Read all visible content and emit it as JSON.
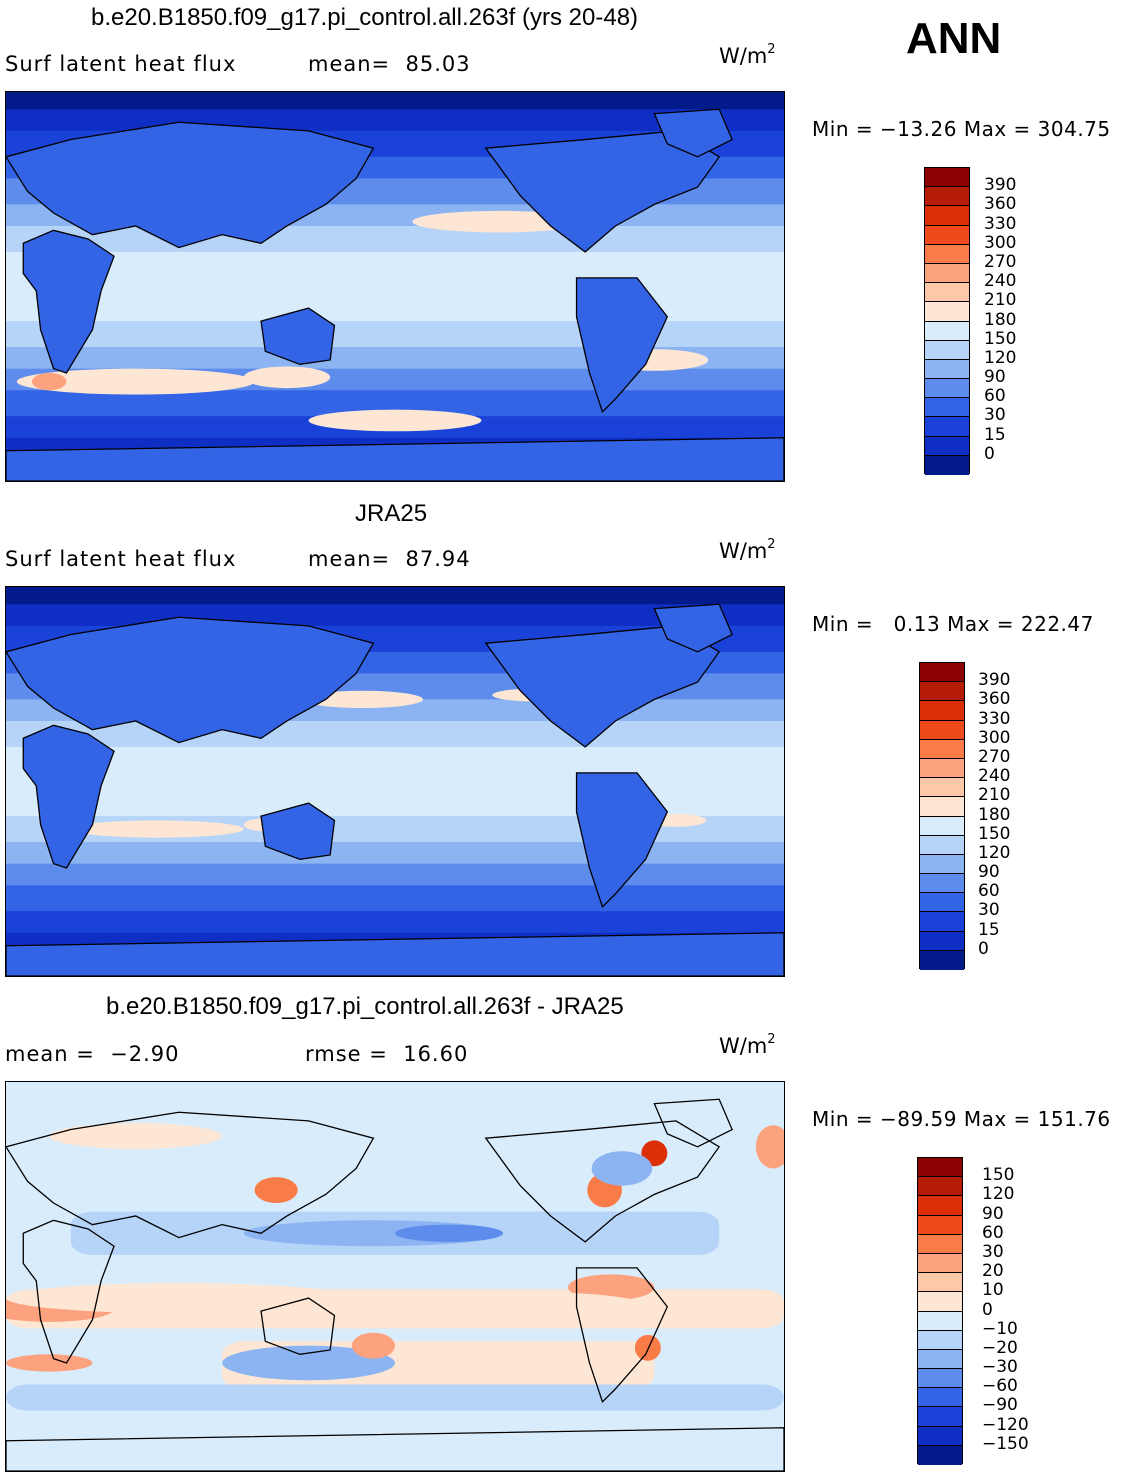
{
  "season": "ANN",
  "panels": [
    {
      "title": "b.e20.B1850.f09_g17.pi_control.all.263f (yrs 20-48)",
      "left_label": "Surf latent heat flux",
      "stat_label": "mean=  85.03",
      "units": "W/m",
      "units_sup": "2",
      "minmax": "Min = −13.26 Max = 304.75",
      "levels": [
        "390",
        "360",
        "330",
        "300",
        "270",
        "240",
        "210",
        "180",
        "150",
        "120",
        "90",
        "60",
        "30",
        "15",
        "0"
      ],
      "colors": [
        "#8b0000",
        "#b51c06",
        "#dc2f08",
        "#ef4a1c",
        "#f97b48",
        "#fca27e",
        "#fdc8a8",
        "#fde6d4",
        "#d9ecfb",
        "#b6d4f8",
        "#8cb4f2",
        "#5e8cec",
        "#3464e6",
        "#1a42d8",
        "#0f2fc4",
        "#021a8a"
      ],
      "field": "clim"
    },
    {
      "title": "JRA25",
      "left_label": "Surf latent heat flux",
      "stat_label": "mean=  87.94",
      "units": "W/m",
      "units_sup": "2",
      "minmax": "Min =   0.13 Max = 222.47",
      "levels": [
        "390",
        "360",
        "330",
        "300",
        "270",
        "240",
        "210",
        "180",
        "150",
        "120",
        "90",
        "60",
        "30",
        "15",
        "0"
      ],
      "colors": [
        "#8b0000",
        "#b51c06",
        "#dc2f08",
        "#ef4a1c",
        "#f97b48",
        "#fca27e",
        "#fdc8a8",
        "#fde6d4",
        "#d9ecfb",
        "#b6d4f8",
        "#8cb4f2",
        "#5e8cec",
        "#3464e6",
        "#1a42d8",
        "#0f2fc4",
        "#021a8a"
      ],
      "field": "obs"
    },
    {
      "title": "b.e20.B1850.f09_g17.pi_control.all.263f - JRA25",
      "left_label": "mean =  −2.90",
      "stat_label": "rmse =  16.60",
      "units": "W/m",
      "units_sup": "2",
      "minmax": "Min = −89.59 Max = 151.76",
      "levels": [
        "150",
        "120",
        "90",
        "60",
        "30",
        "20",
        "10",
        "0",
        "−10",
        "−20",
        "−30",
        "−60",
        "−90",
        "−120",
        "−150"
      ],
      "colors": [
        "#8b0000",
        "#b51c06",
        "#dc2f08",
        "#ef4a1c",
        "#f97b48",
        "#fca27e",
        "#fdc8a8",
        "#fde6d4",
        "#d9ecfb",
        "#b6d4f8",
        "#8cb4f2",
        "#5e8cec",
        "#3464e6",
        "#1a42d8",
        "#0f2fc4",
        "#021a8a"
      ],
      "field": "diff"
    }
  ]
}
